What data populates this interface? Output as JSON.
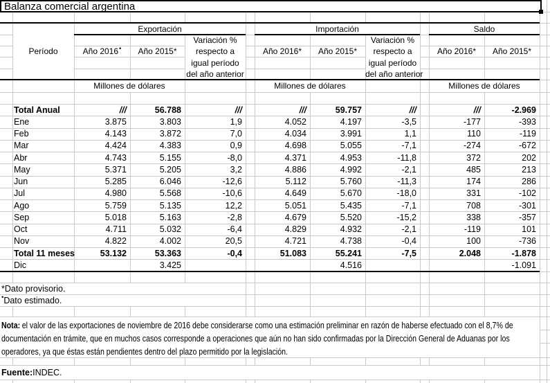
{
  "title": "Balanza comercial argentina",
  "table": {
    "period_header": "Período",
    "unit_label": "Millones de dólares",
    "variation_lines": [
      "Variación %",
      "respecto a",
      "igual período",
      "del año anterior"
    ],
    "groups": {
      "exportacion": {
        "label": "Exportación",
        "y2016": {
          "text": "Año 2016",
          "mark": "•"
        },
        "y2015": {
          "text": "Año 2015",
          "mark": "*"
        }
      },
      "importacion": {
        "label": "Importación",
        "y2016": {
          "text": "Año 2016",
          "mark": "*"
        },
        "y2015": {
          "text": "Año 2015",
          "mark": "*"
        }
      },
      "saldo": {
        "label": "Saldo",
        "y2016": {
          "text": "Año 2016",
          "mark": "*"
        },
        "y2015": {
          "text": "Año 2015",
          "mark": "*"
        }
      }
    },
    "rows": [
      {
        "label": "Total Anual",
        "exp2016": "///",
        "exp2015": "56.788",
        "expvar": "///",
        "imp2016": "///",
        "imp2015": "59.757",
        "impvar": "///",
        "sal2016": "///",
        "sal2015": "-2.969"
      },
      {
        "label": "Ene",
        "exp2016": "3.875",
        "exp2015": "3.803",
        "expvar": "1,9",
        "imp2016": "4.052",
        "imp2015": "4.197",
        "impvar": "-3,5",
        "sal2016": "-177",
        "sal2015": "-393"
      },
      {
        "label": "Feb",
        "exp2016": "4.143",
        "exp2015": "3.872",
        "expvar": "7,0",
        "imp2016": "4.034",
        "imp2015": "3.991",
        "impvar": "1,1",
        "sal2016": "110",
        "sal2015": "-119"
      },
      {
        "label": "Mar",
        "exp2016": "4.424",
        "exp2015": "4.383",
        "expvar": "0,9",
        "imp2016": "4.698",
        "imp2015": "5.055",
        "impvar": "-7,1",
        "sal2016": "-274",
        "sal2015": "-672"
      },
      {
        "label": "Abr",
        "exp2016": "4.743",
        "exp2015": "5.155",
        "expvar": "-8,0",
        "imp2016": "4.371",
        "imp2015": "4.953",
        "impvar": "-11,8",
        "sal2016": "372",
        "sal2015": "202"
      },
      {
        "label": "May",
        "exp2016": "5.371",
        "exp2015": "5.205",
        "expvar": "3,2",
        "imp2016": "4.886",
        "imp2015": "4.992",
        "impvar": "-2,1",
        "sal2016": "485",
        "sal2015": "213"
      },
      {
        "label": "Jun",
        "exp2016": "5.285",
        "exp2015": "6.046",
        "expvar": "-12,6",
        "imp2016": "5.112",
        "imp2015": "5.760",
        "impvar": "-11,3",
        "sal2016": "174",
        "sal2015": "286"
      },
      {
        "label": "Jul",
        "exp2016": "4.980",
        "exp2015": "5.568",
        "expvar": "-10,6",
        "imp2016": "4.649",
        "imp2015": "5.670",
        "impvar": "-18,0",
        "sal2016": "331",
        "sal2015": "-102"
      },
      {
        "label": "Ago",
        "exp2016": "5.759",
        "exp2015": "5.135",
        "expvar": "12,2",
        "imp2016": "5.051",
        "imp2015": "5.435",
        "impvar": "-7,1",
        "sal2016": "708",
        "sal2015": "-301"
      },
      {
        "label": "Sep",
        "exp2016": "5.018",
        "exp2015": "5.163",
        "expvar": "-2,8",
        "imp2016": "4.679",
        "imp2015": "5.520",
        "impvar": "-15,2",
        "sal2016": "338",
        "sal2015": "-357"
      },
      {
        "label": "Oct",
        "exp2016": "4.711",
        "exp2015": "5.032",
        "expvar": "-6,4",
        "imp2016": "4.829",
        "imp2015": "4.932",
        "impvar": "-2,1",
        "sal2016": "-119",
        "sal2015": "101"
      },
      {
        "label": "Nov",
        "exp2016": "4.822",
        "exp2015": "4.002",
        "expvar": "20,5",
        "imp2016": "4.721",
        "imp2015": "4.738",
        "impvar": "-0,4",
        "sal2016": "100",
        "sal2015": "-736"
      },
      {
        "label": "Total 11 meses",
        "exp2016": "53.132",
        "exp2015": "53.363",
        "expvar": "-0,4",
        "imp2016": "51.083",
        "imp2015": "55.241",
        "impvar": "-7,5",
        "sal2016": "2.048",
        "sal2015": "-1.878"
      },
      {
        "label": "Dic",
        "exp2016": "",
        "exp2015": "3.425",
        "expvar": "",
        "imp2016": "",
        "imp2015": "4.516",
        "impvar": "",
        "sal2016": "",
        "sal2015": "-1.091"
      }
    ]
  },
  "footnotes": {
    "provisional": {
      "mark": "*",
      "text": " Dato provisorio."
    },
    "estimated": {
      "mark": "•",
      "text": " Dato estimado."
    }
  },
  "note": {
    "label": "Nota:",
    "line1": "el valor de las exportaciones de noviembre de 2016 debe considerarse como una estimación preliminar en razón de haberse efectuado con el 8,7% de",
    "line2": "documentación en trámite, que en muchos casos corresponde a operaciones que aún no han sido confirmadas por la Dirección General de Aduanas por los",
    "line3": "operadores, ya que éstas están pendientes dentro del plazo permitido por la legislación."
  },
  "source": {
    "label": "Fuente:",
    "value": " INDEC."
  }
}
